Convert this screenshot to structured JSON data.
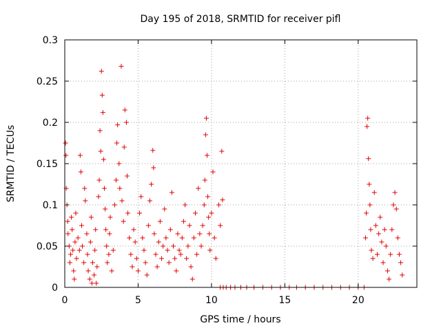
{
  "chart_data": {
    "type": "scatter",
    "title": "Day 195 of 2018, SRMTID for receiver pifl",
    "xlabel": "GPS time / hours",
    "ylabel": "SRMTID / TECUs",
    "xlim": [
      0,
      24
    ],
    "ylim": [
      0,
      0.3
    ],
    "x_ticks": [
      0,
      5,
      10,
      15,
      20
    ],
    "x_tick_labels": [
      "0",
      "5",
      "10",
      "15",
      "20"
    ],
    "y_ticks": [
      0,
      0.05,
      0.1,
      0.15,
      0.2,
      0.25,
      0.3
    ],
    "y_tick_labels": [
      "0",
      "0.05",
      "0.1",
      "0.15",
      "0.2",
      "0.25",
      "0.3"
    ],
    "grid": true,
    "marker": "+",
    "color": "#e00000",
    "series": [
      {
        "name": "SRMTID",
        "points": [
          [
            0.05,
            0.175
          ],
          [
            0.08,
            0.16
          ],
          [
            0.1,
            0.12
          ],
          [
            0.15,
            0.1
          ],
          [
            0.2,
            0.08
          ],
          [
            0.22,
            0.065
          ],
          [
            0.3,
            0.05
          ],
          [
            0.35,
            0.03
          ],
          [
            0.4,
            0.04
          ],
          [
            0.45,
            0.085
          ],
          [
            0.5,
            0.07
          ],
          [
            0.55,
            0.045
          ],
          [
            0.6,
            0.02
          ],
          [
            0.65,
            0.01
          ],
          [
            0.7,
            0.055
          ],
          [
            0.75,
            0.09
          ],
          [
            0.8,
            0.035
          ],
          [
            0.9,
            0.06
          ],
          [
            1.0,
            0.045
          ],
          [
            1.05,
            0.16
          ],
          [
            1.1,
            0.14
          ],
          [
            1.15,
            0.075
          ],
          [
            1.2,
            0.05
          ],
          [
            1.3,
            0.03
          ],
          [
            1.35,
            0.12
          ],
          [
            1.4,
            0.105
          ],
          [
            1.5,
            0.065
          ],
          [
            1.55,
            0.04
          ],
          [
            1.6,
            0.02
          ],
          [
            1.7,
            0.01
          ],
          [
            1.75,
            0.055
          ],
          [
            1.8,
            0.085
          ],
          [
            1.85,
            0.005
          ],
          [
            1.9,
            0.03
          ],
          [
            2.0,
            0.015
          ],
          [
            2.05,
            0.045
          ],
          [
            2.1,
            0.07
          ],
          [
            2.15,
            0.005
          ],
          [
            2.2,
            0.025
          ],
          [
            2.3,
            0.11
          ],
          [
            2.35,
            0.13
          ],
          [
            2.4,
            0.19
          ],
          [
            2.45,
            0.165
          ],
          [
            2.5,
            0.262
          ],
          [
            2.55,
            0.233
          ],
          [
            2.6,
            0.212
          ],
          [
            2.65,
            0.155
          ],
          [
            2.7,
            0.12
          ],
          [
            2.75,
            0.095
          ],
          [
            2.8,
            0.07
          ],
          [
            2.85,
            0.05
          ],
          [
            2.9,
            0.03
          ],
          [
            3.0,
            0.04
          ],
          [
            3.05,
            0.065
          ],
          [
            3.1,
            0.085
          ],
          [
            3.2,
            0.02
          ],
          [
            3.3,
            0.045
          ],
          [
            3.4,
            0.1
          ],
          [
            3.5,
            0.13
          ],
          [
            3.55,
            0.175
          ],
          [
            3.6,
            0.197
          ],
          [
            3.7,
            0.15
          ],
          [
            3.75,
            0.12
          ],
          [
            3.85,
            0.268
          ],
          [
            3.9,
            0.105
          ],
          [
            4.0,
            0.08
          ],
          [
            4.05,
            0.17
          ],
          [
            4.1,
            0.215
          ],
          [
            4.2,
            0.2
          ],
          [
            4.25,
            0.135
          ],
          [
            4.3,
            0.09
          ],
          [
            4.4,
            0.06
          ],
          [
            4.5,
            0.04
          ],
          [
            4.6,
            0.025
          ],
          [
            4.7,
            0.07
          ],
          [
            4.8,
            0.055
          ],
          [
            4.9,
            0.035
          ],
          [
            5.0,
            0.02
          ],
          [
            5.1,
            0.09
          ],
          [
            5.2,
            0.11
          ],
          [
            5.3,
            0.06
          ],
          [
            5.4,
            0.045
          ],
          [
            5.5,
            0.03
          ],
          [
            5.6,
            0.015
          ],
          [
            5.7,
            0.075
          ],
          [
            5.8,
            0.105
          ],
          [
            5.9,
            0.125
          ],
          [
            6.0,
            0.166
          ],
          [
            6.05,
            0.145
          ],
          [
            6.1,
            0.065
          ],
          [
            6.2,
            0.04
          ],
          [
            6.3,
            0.025
          ],
          [
            6.4,
            0.055
          ],
          [
            6.5,
            0.08
          ],
          [
            6.6,
            0.035
          ],
          [
            6.7,
            0.05
          ],
          [
            6.8,
            0.095
          ],
          [
            6.9,
            0.06
          ],
          [
            7.0,
            0.045
          ],
          [
            7.1,
            0.03
          ],
          [
            7.2,
            0.07
          ],
          [
            7.3,
            0.115
          ],
          [
            7.4,
            0.05
          ],
          [
            7.5,
            0.035
          ],
          [
            7.6,
            0.02
          ],
          [
            7.7,
            0.065
          ],
          [
            7.8,
            0.045
          ],
          [
            7.9,
            0.04
          ],
          [
            8.0,
            0.06
          ],
          [
            8.1,
            0.08
          ],
          [
            8.2,
            0.1
          ],
          [
            8.3,
            0.035
          ],
          [
            8.4,
            0.05
          ],
          [
            8.5,
            0.075
          ],
          [
            8.6,
            0.025
          ],
          [
            8.7,
            0.01
          ],
          [
            8.8,
            0.06
          ],
          [
            8.9,
            0.09
          ],
          [
            9.0,
            0.04
          ],
          [
            9.1,
            0.12
          ],
          [
            9.2,
            0.065
          ],
          [
            9.3,
            0.05
          ],
          [
            9.4,
            0.075
          ],
          [
            9.5,
            0.1
          ],
          [
            9.55,
            0.13
          ],
          [
            9.6,
            0.185
          ],
          [
            9.65,
            0.205
          ],
          [
            9.7,
            0.16
          ],
          [
            9.75,
            0.11
          ],
          [
            9.8,
            0.085
          ],
          [
            9.85,
            0.065
          ],
          [
            9.9,
            0.045
          ],
          [
            10.0,
            0.09
          ],
          [
            10.1,
            0.14
          ],
          [
            10.2,
            0.06
          ],
          [
            10.3,
            0.035
          ],
          [
            10.5,
            0.1
          ],
          [
            10.6,
            0.075
          ],
          [
            10.7,
            0.165
          ],
          [
            10.75,
            0.106
          ],
          [
            10.6,
            0.0
          ],
          [
            10.8,
            0.0
          ],
          [
            11.0,
            0.0
          ],
          [
            11.3,
            0.0
          ],
          [
            11.6,
            0.0
          ],
          [
            12.0,
            0.0
          ],
          [
            12.4,
            0.0
          ],
          [
            12.9,
            0.0
          ],
          [
            13.5,
            0.0
          ],
          [
            14.1,
            0.0
          ],
          [
            14.7,
            0.0
          ],
          [
            15.3,
            0.0
          ],
          [
            15.8,
            0.0
          ],
          [
            16.4,
            0.0
          ],
          [
            17.0,
            0.0
          ],
          [
            17.6,
            0.0
          ],
          [
            18.2,
            0.0
          ],
          [
            18.8,
            0.0
          ],
          [
            19.4,
            0.0
          ],
          [
            20.0,
            0.0
          ],
          [
            20.4,
            0.0
          ],
          [
            20.5,
            0.06
          ],
          [
            20.55,
            0.09
          ],
          [
            20.6,
            0.195
          ],
          [
            20.65,
            0.205
          ],
          [
            20.7,
            0.156
          ],
          [
            20.75,
            0.125
          ],
          [
            20.8,
            0.1
          ],
          [
            20.85,
            0.07
          ],
          [
            20.9,
            0.045
          ],
          [
            21.0,
            0.035
          ],
          [
            21.1,
            0.115
          ],
          [
            21.2,
            0.075
          ],
          [
            21.3,
            0.04
          ],
          [
            21.4,
            0.065
          ],
          [
            21.5,
            0.085
          ],
          [
            21.6,
            0.055
          ],
          [
            21.7,
            0.03
          ],
          [
            21.8,
            0.07
          ],
          [
            21.9,
            0.05
          ],
          [
            22.0,
            0.02
          ],
          [
            22.1,
            0.01
          ],
          [
            22.2,
            0.04
          ],
          [
            22.3,
            0.07
          ],
          [
            22.4,
            0.1
          ],
          [
            22.5,
            0.115
          ],
          [
            22.6,
            0.095
          ],
          [
            22.7,
            0.06
          ],
          [
            22.8,
            0.04
          ],
          [
            22.9,
            0.03
          ],
          [
            23.0,
            0.015
          ]
        ]
      }
    ]
  }
}
